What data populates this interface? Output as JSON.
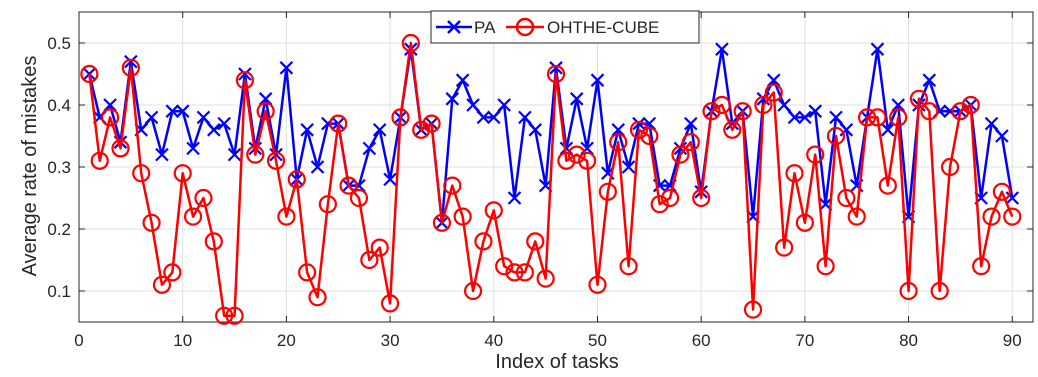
{
  "chart_data": {
    "type": "line",
    "xlabel": "Index of tasks",
    "ylabel": "Average rate of mistakes",
    "xlim": [
      0,
      92
    ],
    "ylim": [
      0.05,
      0.55
    ],
    "xticks": [
      0,
      10,
      20,
      30,
      40,
      50,
      60,
      70,
      80,
      90
    ],
    "yticks": [
      0.1,
      0.2,
      0.3,
      0.4,
      0.5
    ],
    "xtick_labels": [
      "0",
      "10",
      "20",
      "30",
      "40",
      "50",
      "60",
      "70",
      "80",
      "90"
    ],
    "ytick_labels": [
      "0.1",
      "0.2",
      "0.3",
      "0.4",
      "0.5"
    ],
    "grid": true,
    "legend_position": "top-center",
    "x": [
      1,
      2,
      3,
      4,
      5,
      6,
      7,
      8,
      9,
      10,
      11,
      12,
      13,
      14,
      15,
      16,
      17,
      18,
      19,
      20,
      21,
      22,
      23,
      24,
      25,
      26,
      27,
      28,
      29,
      30,
      31,
      32,
      33,
      34,
      35,
      36,
      37,
      38,
      39,
      40,
      41,
      42,
      43,
      44,
      45,
      46,
      47,
      48,
      49,
      50,
      51,
      52,
      53,
      54,
      55,
      56,
      57,
      58,
      59,
      60,
      61,
      62,
      63,
      64,
      65,
      66,
      67,
      68,
      69,
      70,
      71,
      72,
      73,
      74,
      75,
      76,
      77,
      78,
      79,
      80,
      81,
      82,
      83,
      84,
      85,
      86,
      87,
      88,
      89,
      90
    ],
    "series": [
      {
        "name": "PA",
        "color": "#0000ff",
        "marker": "x",
        "values": [
          0.45,
          0.38,
          0.4,
          0.34,
          0.47,
          0.36,
          0.38,
          0.32,
          0.39,
          0.39,
          0.33,
          0.38,
          0.36,
          0.37,
          0.32,
          0.45,
          0.33,
          0.41,
          0.32,
          0.46,
          0.28,
          0.36,
          0.3,
          0.37,
          0.37,
          0.27,
          0.27,
          0.33,
          0.36,
          0.28,
          0.38,
          0.49,
          0.36,
          0.37,
          0.21,
          0.41,
          0.44,
          0.4,
          0.38,
          0.38,
          0.4,
          0.25,
          0.38,
          0.36,
          0.27,
          0.46,
          0.33,
          0.41,
          0.33,
          0.44,
          0.29,
          0.36,
          0.3,
          0.37,
          0.37,
          0.27,
          0.27,
          0.33,
          0.37,
          0.26,
          0.39,
          0.49,
          0.37,
          0.39,
          0.22,
          0.41,
          0.44,
          0.4,
          0.38,
          0.38,
          0.39,
          0.24,
          0.38,
          0.36,
          0.27,
          0.38,
          0.49,
          0.36,
          0.4,
          0.22,
          0.4,
          0.44,
          0.39,
          0.39,
          0.39,
          0.4,
          0.25,
          0.37,
          0.35,
          0.25
        ]
      },
      {
        "name": "OHTHE-CUBE",
        "color": "#ff0000",
        "marker": "o",
        "values": [
          0.45,
          0.31,
          0.38,
          0.33,
          0.46,
          0.29,
          0.21,
          0.11,
          0.13,
          0.29,
          0.22,
          0.25,
          0.18,
          0.06,
          0.06,
          0.44,
          0.32,
          0.39,
          0.31,
          0.22,
          0.28,
          0.13,
          0.09,
          0.24,
          0.37,
          0.27,
          0.25,
          0.15,
          0.17,
          0.08,
          0.38,
          0.5,
          0.36,
          0.37,
          0.21,
          0.27,
          0.22,
          0.1,
          0.18,
          0.23,
          0.14,
          0.13,
          0.13,
          0.18,
          0.12,
          0.45,
          0.31,
          0.32,
          0.31,
          0.11,
          0.26,
          0.34,
          0.14,
          0.36,
          0.35,
          0.24,
          0.25,
          0.32,
          0.34,
          0.25,
          0.39,
          0.4,
          0.36,
          0.39,
          0.07,
          0.4,
          0.42,
          0.17,
          0.29,
          0.21,
          0.32,
          0.14,
          0.35,
          0.25,
          0.22,
          0.38,
          0.38,
          0.27,
          0.38,
          0.1,
          0.41,
          0.39,
          0.1,
          0.3,
          0.39,
          0.4,
          0.14,
          0.22,
          0.26,
          0.22
        ]
      }
    ]
  }
}
